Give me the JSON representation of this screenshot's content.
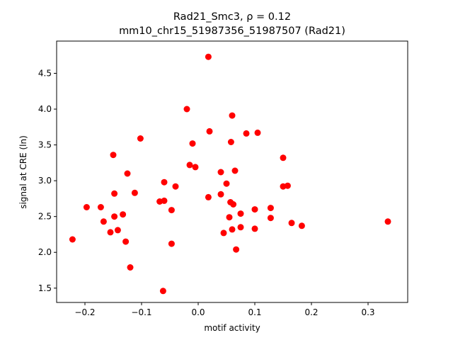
{
  "chart_data": {
    "type": "scatter",
    "title_line1": "Rad21_Smc3, ρ = 0.12",
    "title_line2": "mm10_chr15_51987356_51987507 (Rad21)",
    "xlabel": "motif activity",
    "ylabel": "signal at CRE (ln)",
    "xlim": [
      -0.25,
      0.37
    ],
    "ylim": [
      1.3,
      4.95
    ],
    "xticks": [
      -0.2,
      -0.1,
      0.0,
      0.1,
      0.2,
      0.3
    ],
    "xtick_labels": [
      "−0.2",
      "−0.1",
      "0.0",
      "0.1",
      "0.2",
      "0.3"
    ],
    "yticks": [
      1.5,
      2.0,
      2.5,
      3.0,
      3.5,
      4.0,
      4.5
    ],
    "ytick_labels": [
      "1.5",
      "2.0",
      "2.5",
      "3.0",
      "3.5",
      "4.0",
      "4.5"
    ],
    "grid": false,
    "point_color": "#ff0000",
    "points": [
      [
        0.018,
        4.73
      ],
      [
        -0.02,
        4.0
      ],
      [
        0.06,
        3.91
      ],
      [
        0.02,
        3.69
      ],
      [
        0.085,
        3.66
      ],
      [
        0.105,
        3.67
      ],
      [
        -0.102,
        3.59
      ],
      [
        -0.01,
        3.52
      ],
      [
        0.058,
        3.54
      ],
      [
        -0.15,
        3.36
      ],
      [
        0.15,
        3.32
      ],
      [
        -0.015,
        3.22
      ],
      [
        -0.005,
        3.19
      ],
      [
        0.04,
        3.12
      ],
      [
        0.065,
        3.14
      ],
      [
        -0.125,
        3.1
      ],
      [
        -0.06,
        2.98
      ],
      [
        0.05,
        2.96
      ],
      [
        -0.04,
        2.92
      ],
      [
        0.15,
        2.92
      ],
      [
        0.158,
        2.93
      ],
      [
        -0.148,
        2.82
      ],
      [
        -0.112,
        2.83
      ],
      [
        0.04,
        2.81
      ],
      [
        0.018,
        2.77
      ],
      [
        -0.06,
        2.72
      ],
      [
        -0.068,
        2.71
      ],
      [
        0.057,
        2.7
      ],
      [
        0.062,
        2.67
      ],
      [
        -0.197,
        2.63
      ],
      [
        -0.172,
        2.63
      ],
      [
        0.1,
        2.6
      ],
      [
        0.128,
        2.62
      ],
      [
        -0.047,
        2.59
      ],
      [
        0.075,
        2.54
      ],
      [
        -0.133,
        2.53
      ],
      [
        -0.148,
        2.5
      ],
      [
        0.055,
        2.49
      ],
      [
        0.128,
        2.48
      ],
      [
        -0.167,
        2.43
      ],
      [
        0.165,
        2.41
      ],
      [
        0.335,
        2.43
      ],
      [
        0.183,
        2.37
      ],
      [
        0.075,
        2.35
      ],
      [
        0.06,
        2.32
      ],
      [
        0.1,
        2.33
      ],
      [
        -0.142,
        2.31
      ],
      [
        -0.155,
        2.28
      ],
      [
        0.045,
        2.27
      ],
      [
        -0.222,
        2.18
      ],
      [
        -0.128,
        2.15
      ],
      [
        -0.047,
        2.12
      ],
      [
        0.067,
        2.04
      ],
      [
        -0.12,
        1.79
      ],
      [
        -0.062,
        1.46
      ]
    ]
  }
}
